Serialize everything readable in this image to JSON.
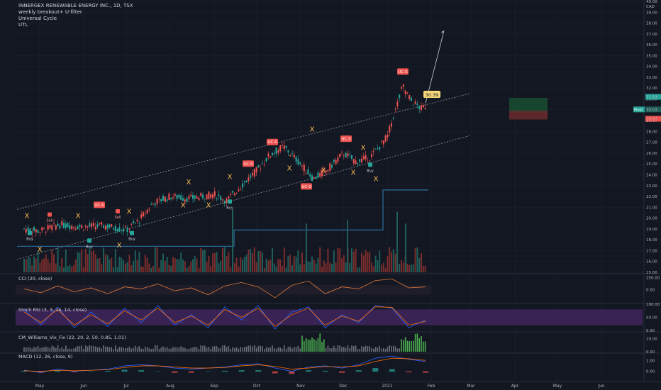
{
  "symbol_title": "INNERGEX RENEWABLE ENERGY INC., 1D, TSX",
  "indicators": [
    "weekly breakout+ U-filter",
    "Universal Cycle",
    "UTL"
  ],
  "currency": "CAD",
  "colors": {
    "up": "#26a69a",
    "down": "#ef5350",
    "background": "#131722",
    "grid": "#1e222d"
  },
  "chart_data": {
    "type": "candlestick",
    "title": "INNERGEX RENEWABLE ENERGY INC., 1D, TSX",
    "price_axis": {
      "ticks": [
        "40.00",
        "39.00",
        "38.00",
        "37.00",
        "36.00",
        "35.00",
        "34.00",
        "33.00",
        "32.00",
        "31.00",
        "30.00",
        "29.00",
        "28.00",
        "27.00",
        "26.00",
        "25.00",
        "24.00",
        "23.00",
        "22.00",
        "21.00",
        "20.00",
        "19.00",
        "18.00",
        "17.00",
        "16.00",
        "15.00"
      ],
      "range": [
        15,
        40
      ]
    },
    "x_ticks": [
      "May",
      "Jun",
      "Jul",
      "Aug",
      "Sep",
      "Oct",
      "Nov",
      "Dec",
      "2021",
      "Feb",
      "Mar",
      "Apr",
      "May",
      "Jun"
    ],
    "price_labels": {
      "last_high": "31.19",
      "last": "30.03",
      "low_label": "29.17",
      "callout": "30.39",
      "badge": "Pivot"
    },
    "price_path": [
      [
        "2020-04-20",
        19.0
      ],
      [
        "2020-05-01",
        18.8
      ],
      [
        "2020-05-15",
        19.4
      ],
      [
        "2020-06-01",
        19.2
      ],
      [
        "2020-06-15",
        19.3
      ],
      [
        "2020-07-01",
        18.9
      ],
      [
        "2020-07-10",
        19.8
      ],
      [
        "2020-07-20",
        21.4
      ],
      [
        "2020-08-01",
        22.0
      ],
      [
        "2020-08-15",
        21.8
      ],
      [
        "2020-09-01",
        22.2
      ],
      [
        "2020-09-10",
        21.6
      ],
      [
        "2020-09-20",
        23.0
      ],
      [
        "2020-10-01",
        24.4
      ],
      [
        "2020-10-10",
        25.8
      ],
      [
        "2020-10-20",
        26.6
      ],
      [
        "2020-11-01",
        25.0
      ],
      [
        "2020-11-10",
        23.6
      ],
      [
        "2020-11-20",
        24.5
      ],
      [
        "2020-12-01",
        26.0
      ],
      [
        "2020-12-10",
        25.2
      ],
      [
        "2020-12-20",
        25.6
      ],
      [
        "2021-01-01",
        27.5
      ],
      [
        "2021-01-08",
        30.5
      ],
      [
        "2021-01-12",
        32.2
      ],
      [
        "2021-01-18",
        30.8
      ],
      [
        "2021-01-25",
        30.1
      ],
      [
        "2021-01-28",
        30.4
      ]
    ],
    "markers": [
      {
        "date": "2020-04-22",
        "price": 20.0,
        "text": "X",
        "kind": "x"
      },
      {
        "date": "2020-04-24",
        "price": 18.3,
        "text": "Buy",
        "kind": "buy"
      },
      {
        "date": "2020-05-01",
        "price": 16.9,
        "text": "X",
        "kind": "x"
      },
      {
        "date": "2020-05-08",
        "price": 20.0,
        "text": "Sell",
        "kind": "sell"
      },
      {
        "date": "2020-05-28",
        "price": 20.0,
        "text": "X",
        "kind": "x"
      },
      {
        "date": "2020-06-05",
        "price": 17.6,
        "text": "Buy",
        "kind": "buy"
      },
      {
        "date": "2020-06-12",
        "price": 21.0,
        "text": "UC-S",
        "kind": "ucs"
      },
      {
        "date": "2020-06-25",
        "price": 20.3,
        "text": "Sell",
        "kind": "sell"
      },
      {
        "date": "2020-06-26",
        "price": 17.3,
        "text": "X",
        "kind": "x"
      },
      {
        "date": "2020-07-03",
        "price": 20.4,
        "text": "X",
        "kind": "x"
      },
      {
        "date": "2020-07-05",
        "price": 18.3,
        "text": "Buy",
        "kind": "buy"
      },
      {
        "date": "2020-08-10",
        "price": 21.0,
        "text": "X",
        "kind": "x"
      },
      {
        "date": "2020-08-14",
        "price": 23.1,
        "text": "X",
        "kind": "x"
      },
      {
        "date": "2020-08-28",
        "price": 21.0,
        "text": "X",
        "kind": "x"
      },
      {
        "date": "2020-09-12",
        "price": 21.2,
        "text": "Buy",
        "kind": "buy"
      },
      {
        "date": "2020-09-12",
        "price": 23.6,
        "text": "X",
        "kind": "x"
      },
      {
        "date": "2020-09-25",
        "price": 24.8,
        "text": "UC-S",
        "kind": "ucs"
      },
      {
        "date": "2020-10-12",
        "price": 26.8,
        "text": "UC-S",
        "kind": "ucs"
      },
      {
        "date": "2020-10-24",
        "price": 24.4,
        "text": "X",
        "kind": "x"
      },
      {
        "date": "2020-11-05",
        "price": 22.7,
        "text": "UC-S",
        "kind": "ucs"
      },
      {
        "date": "2020-11-09",
        "price": 28.0,
        "text": "X",
        "kind": "x"
      },
      {
        "date": "2020-11-17",
        "price": 24.2,
        "text": "X",
        "kind": "x"
      },
      {
        "date": "2020-12-03",
        "price": 27.1,
        "text": "UC-S",
        "kind": "ucs"
      },
      {
        "date": "2020-12-08",
        "price": 24.0,
        "text": "X",
        "kind": "x"
      },
      {
        "date": "2020-12-15",
        "price": 26.3,
        "text": "X",
        "kind": "x"
      },
      {
        "date": "2020-12-20",
        "price": 24.6,
        "text": "Buy",
        "kind": "buy"
      },
      {
        "date": "2020-12-24",
        "price": 23.4,
        "text": "X",
        "kind": "x"
      },
      {
        "date": "2021-01-12",
        "price": 33.3,
        "text": "UC-S",
        "kind": "ucs"
      }
    ],
    "cci": {
      "label": "CCI (20, close)",
      "ticks": [
        "250.00",
        "0.00"
      ],
      "range": [
        -250,
        300
      ],
      "values": [
        20,
        -60,
        80,
        -40,
        40,
        -80,
        60,
        20,
        120,
        -20,
        40,
        -100,
        80,
        150,
        60,
        -160,
        90,
        180,
        -80,
        60,
        20,
        190,
        220,
        40,
        60
      ]
    },
    "stoch_rsi": {
      "label": "Stoch RSI (3, 3, 14, 14, close)",
      "ticks": [
        "100.00",
        "50.00",
        "0.00"
      ],
      "range": [
        0,
        100
      ],
      "k": [
        80,
        20,
        90,
        10,
        70,
        15,
        85,
        30,
        95,
        20,
        60,
        10,
        90,
        40,
        95,
        5,
        70,
        90,
        10,
        60,
        30,
        95,
        85,
        10,
        40
      ],
      "d": [
        70,
        30,
        80,
        20,
        60,
        25,
        75,
        40,
        85,
        30,
        55,
        20,
        80,
        50,
        85,
        15,
        60,
        85,
        20,
        55,
        35,
        90,
        88,
        20,
        35
      ]
    },
    "vix_fix": {
      "label": "CM_Williams_Vix_Fix (22, 20, 2, 50, 0.85, 1.01)",
      "ticks": [
        "10.00",
        "0.00"
      ],
      "range": [
        0,
        14
      ]
    },
    "macd": {
      "label": "MACD (12, 26, close, 9)",
      "ticks": [
        "1.00",
        "0.00"
      ],
      "range": [
        -0.8,
        1.6
      ],
      "macd": [
        0.1,
        -0.1,
        0.2,
        0.0,
        0.1,
        0.2,
        0.5,
        0.6,
        0.5,
        0.3,
        0.2,
        0.3,
        0.4,
        0.6,
        0.7,
        0.3,
        0.0,
        0.4,
        0.5,
        0.3,
        0.6,
        1.2,
        1.4,
        1.1,
        0.9
      ],
      "signal": [
        0.05,
        0.0,
        0.1,
        0.05,
        0.1,
        0.15,
        0.35,
        0.5,
        0.5,
        0.4,
        0.3,
        0.3,
        0.35,
        0.5,
        0.6,
        0.45,
        0.2,
        0.3,
        0.45,
        0.4,
        0.5,
        0.9,
        1.2,
        1.15,
        1.0
      ]
    }
  }
}
